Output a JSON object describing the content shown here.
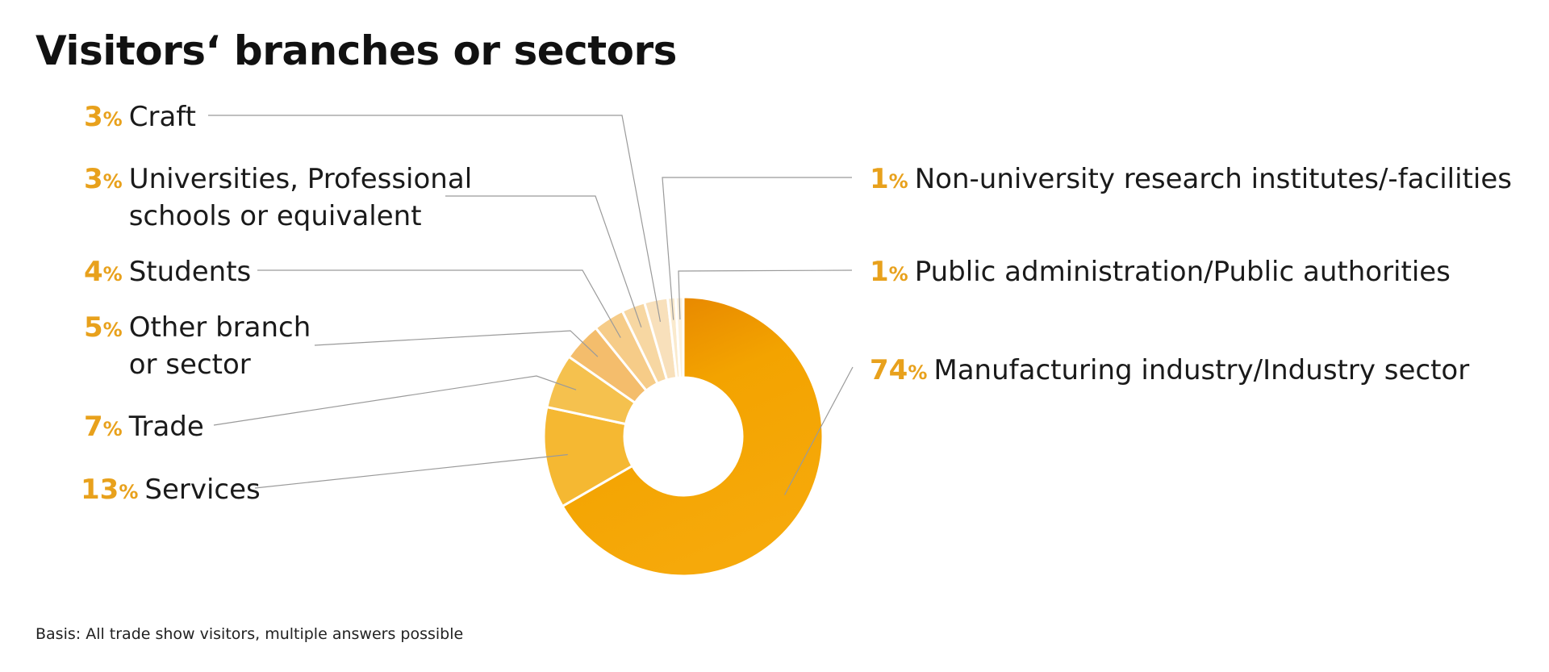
{
  "title": "Visitors‘ branches or sectors",
  "footnote": "Basis: All trade show visitors, multiple answers possible",
  "chart_data": {
    "type": "pie",
    "title": "Visitors‘ branches or sectors",
    "unit": "%",
    "slices": [
      {
        "label": "Manufacturing industry/Industry sector",
        "lines": [
          "Manufacturing industry/Industry sector"
        ],
        "value": 74,
        "color": "#f3a712"
      },
      {
        "label": "Services",
        "lines": [
          "Services"
        ],
        "value": 13,
        "color": "#f5b832"
      },
      {
        "label": "Trade",
        "lines": [
          "Trade"
        ],
        "value": 7,
        "color": "#f5c14e"
      },
      {
        "label": "Other branch or sector",
        "lines": [
          "Other branch",
          "or sector"
        ],
        "value": 5,
        "color": "#f4bd6c"
      },
      {
        "label": "Students",
        "lines": [
          "Students"
        ],
        "value": 4,
        "color": "#f6cc88"
      },
      {
        "label": "Universities, Professional schools or equivalent",
        "lines": [
          "Universities, Professional",
          "schools or equivalent"
        ],
        "value": 3,
        "color": "#f7d7a2"
      },
      {
        "label": "Craft",
        "lines": [
          "Craft"
        ],
        "value": 3,
        "color": "#f8e0bb"
      },
      {
        "label": "Non-university research institutes/-facilities",
        "lines": [
          "Non-university research institutes/-facilities"
        ],
        "value": 1,
        "color": "#faeacd"
      },
      {
        "label": "Public administration/Public authorities",
        "lines": [
          "Public administration/Public authorities"
        ],
        "value": 1,
        "color": "#fbf1de"
      }
    ]
  }
}
